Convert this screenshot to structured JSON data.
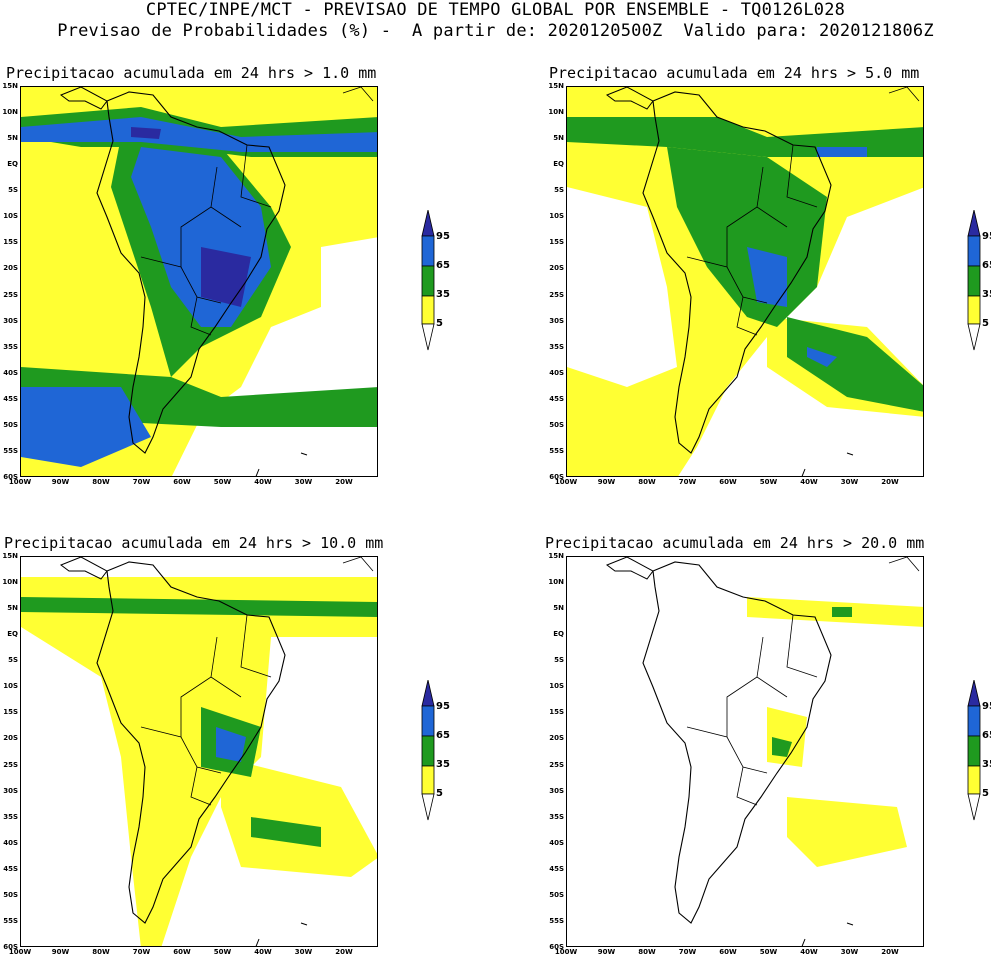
{
  "header": {
    "line1": "CPTEC/INPE/MCT - PREVISAO DE TEMPO GLOBAL POR ENSEMBLE - TQ0126L028",
    "line2": "Previsao de Probabilidades (%) -  A partir de: 2020120500Z  Valido para: 2020121806Z"
  },
  "panels": [
    {
      "title": "Precipitacao acumulada em 24 hrs > 1.0 mm"
    },
    {
      "title": "Precipitacao acumulada em 24 hrs > 5.0 mm"
    },
    {
      "title": "Precipitacao acumulada em 24 hrs > 10.0 mm"
    },
    {
      "title": "Precipitacao acumulada em 24 hrs > 20.0 mm"
    }
  ],
  "lat_labels": [
    "15N",
    "10N",
    "5N",
    "EQ",
    "5S",
    "10S",
    "15S",
    "20S",
    "25S",
    "30S",
    "35S",
    "40S",
    "45S",
    "50S",
    "55S",
    "60S"
  ],
  "lon_labels": [
    "100W",
    "90W",
    "80W",
    "70W",
    "60W",
    "50W",
    "40W",
    "30W",
    "20W"
  ],
  "colorbar": {
    "levels": [
      "95",
      "65",
      "35",
      "5"
    ],
    "colors": {
      "lvl5": "#ffff33",
      "lvl35": "#1f9a1f",
      "lvl65": "#1f66d6",
      "lvl95": "#2a2aa0"
    }
  }
}
